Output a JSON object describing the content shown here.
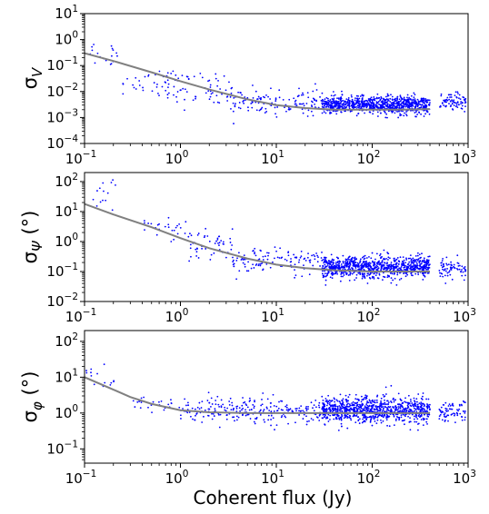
{
  "figure": {
    "xlabel": "Coherent flux (Jy)"
  },
  "chart_data": [
    {
      "type": "scatter",
      "ylabel_main": "σ",
      "ylabel_sub": "V",
      "ylabel_suffix": "",
      "xscale": "log",
      "yscale": "log",
      "xlim": [
        0.1,
        1000
      ],
      "ylim": [
        0.0001,
        10
      ],
      "x_ticks": [
        {
          "value": 0.1,
          "base": "10",
          "exp": "−1"
        },
        {
          "value": 1,
          "base": "10",
          "exp": "0"
        },
        {
          "value": 10,
          "base": "10",
          "exp": "1"
        },
        {
          "value": 100,
          "base": "10",
          "exp": "2"
        },
        {
          "value": 1000,
          "base": "10",
          "exp": "3"
        }
      ],
      "y_ticks": [
        {
          "value": 0.0001,
          "base": "10",
          "exp": "−4"
        },
        {
          "value": 0.001,
          "base": "10",
          "exp": "−3"
        },
        {
          "value": 0.01,
          "base": "10",
          "exp": "−2"
        },
        {
          "value": 0.1,
          "base": "10",
          "exp": "−1"
        },
        {
          "value": 1,
          "base": "10",
          "exp": "0"
        },
        {
          "value": 10,
          "base": "10",
          "exp": "1"
        }
      ],
      "series": [
        {
          "kind": "points",
          "color": "#0000ff",
          "clusters": [
            {
              "x_range": [
                0.1,
                0.22
              ],
              "y_center": 0.3,
              "y_spread_dex": 0.45,
              "n": 18
            },
            {
              "x_range": [
                0.25,
                0.9
              ],
              "y_center": 0.025,
              "y_spread_dex": 0.5,
              "n": 30
            },
            {
              "x_range": [
                0.6,
                3.5
              ],
              "y_center": 0.012,
              "y_spread_dex": 0.55,
              "n": 70
            },
            {
              "x_range": [
                3.5,
                30
              ],
              "y_center": 0.004,
              "y_spread_dex": 0.4,
              "n": 130
            },
            {
              "x_range": [
                30,
                400
              ],
              "y_center": 0.003,
              "y_spread_dex": 0.28,
              "n": 900
            },
            {
              "x_range": [
                500,
                950
              ],
              "y_center": 0.004,
              "y_spread_dex": 0.28,
              "n": 80
            }
          ]
        },
        {
          "kind": "fit",
          "color": "#808080",
          "x": [
            0.1,
            0.2,
            0.5,
            1,
            2,
            5,
            10,
            20,
            40,
            100,
            200,
            400
          ],
          "y": [
            0.3,
            0.15,
            0.055,
            0.025,
            0.012,
            0.005,
            0.003,
            0.0023,
            0.002,
            0.002,
            0.002,
            0.0021
          ]
        }
      ]
    },
    {
      "type": "scatter",
      "ylabel_main": "σ",
      "ylabel_sub": "Ψ",
      "ylabel_suffix": " (°)",
      "xscale": "log",
      "yscale": "log",
      "xlim": [
        0.1,
        1000
      ],
      "ylim": [
        0.01,
        200
      ],
      "x_ticks": [
        {
          "value": 0.1,
          "base": "10",
          "exp": "−1"
        },
        {
          "value": 1,
          "base": "10",
          "exp": "0"
        },
        {
          "value": 10,
          "base": "10",
          "exp": "1"
        },
        {
          "value": 100,
          "base": "10",
          "exp": "2"
        },
        {
          "value": 1000,
          "base": "10",
          "exp": "3"
        }
      ],
      "y_ticks": [
        {
          "value": 0.01,
          "base": "10",
          "exp": "−2"
        },
        {
          "value": 0.1,
          "base": "10",
          "exp": "−1"
        },
        {
          "value": 1,
          "base": "10",
          "exp": "0"
        },
        {
          "value": 10,
          "base": "10",
          "exp": "1"
        },
        {
          "value": 100,
          "base": "10",
          "exp": "2"
        }
      ],
      "series": [
        {
          "kind": "points",
          "color": "#0000ff",
          "clusters": [
            {
              "x_range": [
                0.12,
                0.22
              ],
              "y_center": 40,
              "y_spread_dex": 0.35,
              "n": 14
            },
            {
              "x_range": [
                0.4,
                1.2
              ],
              "y_center": 2.5,
              "y_spread_dex": 0.35,
              "n": 25
            },
            {
              "x_range": [
                1.2,
                3.5
              ],
              "y_center": 0.8,
              "y_spread_dex": 0.4,
              "n": 50
            },
            {
              "x_range": [
                3.5,
                30
              ],
              "y_center": 0.22,
              "y_spread_dex": 0.35,
              "n": 120
            },
            {
              "x_range": [
                30,
                400
              ],
              "y_center": 0.14,
              "y_spread_dex": 0.3,
              "n": 900
            },
            {
              "x_range": [
                500,
                950
              ],
              "y_center": 0.13,
              "y_spread_dex": 0.25,
              "n": 70
            }
          ]
        },
        {
          "kind": "fit",
          "color": "#808080",
          "x": [
            0.1,
            0.2,
            0.5,
            1,
            2,
            5,
            10,
            20,
            40,
            100,
            200,
            400
          ],
          "y": [
            18,
            8,
            3,
            1.3,
            0.6,
            0.27,
            0.17,
            0.13,
            0.11,
            0.1,
            0.1,
            0.1
          ]
        }
      ]
    },
    {
      "type": "scatter",
      "ylabel_main": "σ",
      "ylabel_sub": "φ",
      "ylabel_suffix": " (°)",
      "xscale": "log",
      "yscale": "log",
      "xlim": [
        0.1,
        1000
      ],
      "ylim": [
        0.04,
        200
      ],
      "x_ticks": [
        {
          "value": 0.1,
          "base": "10",
          "exp": "−1"
        },
        {
          "value": 1,
          "base": "10",
          "exp": "0"
        },
        {
          "value": 10,
          "base": "10",
          "exp": "1"
        },
        {
          "value": 100,
          "base": "10",
          "exp": "2"
        },
        {
          "value": 1000,
          "base": "10",
          "exp": "3"
        }
      ],
      "y_ticks": [
        {
          "value": 0.1,
          "base": "10",
          "exp": "−1"
        },
        {
          "value": 1,
          "base": "10",
          "exp": "0"
        },
        {
          "value": 10,
          "base": "10",
          "exp": "1"
        },
        {
          "value": 100,
          "base": "10",
          "exp": "2"
        }
      ],
      "series": [
        {
          "kind": "points",
          "color": "#0000ff",
          "clusters": [
            {
              "x_range": [
                0.1,
                0.22
              ],
              "y_center": 12,
              "y_spread_dex": 0.3,
              "n": 14
            },
            {
              "x_range": [
                0.3,
                1.0
              ],
              "y_center": 1.8,
              "y_spread_dex": 0.3,
              "n": 25
            },
            {
              "x_range": [
                1.0,
                30
              ],
              "y_center": 1.2,
              "y_spread_dex": 0.3,
              "n": 250
            },
            {
              "x_range": [
                30,
                400
              ],
              "y_center": 1.2,
              "y_spread_dex": 0.3,
              "n": 900
            },
            {
              "x_range": [
                500,
                950
              ],
              "y_center": 1.1,
              "y_spread_dex": 0.25,
              "n": 70
            }
          ]
        },
        {
          "kind": "fit",
          "color": "#808080",
          "x": [
            0.1,
            0.2,
            0.3,
            0.5,
            1,
            2,
            5,
            10,
            40,
            100,
            200,
            400
          ],
          "y": [
            10,
            4.5,
            2.8,
            1.8,
            1.2,
            1.05,
            1.0,
            1.0,
            1.0,
            1.0,
            1.0,
            1.0
          ]
        }
      ]
    }
  ]
}
